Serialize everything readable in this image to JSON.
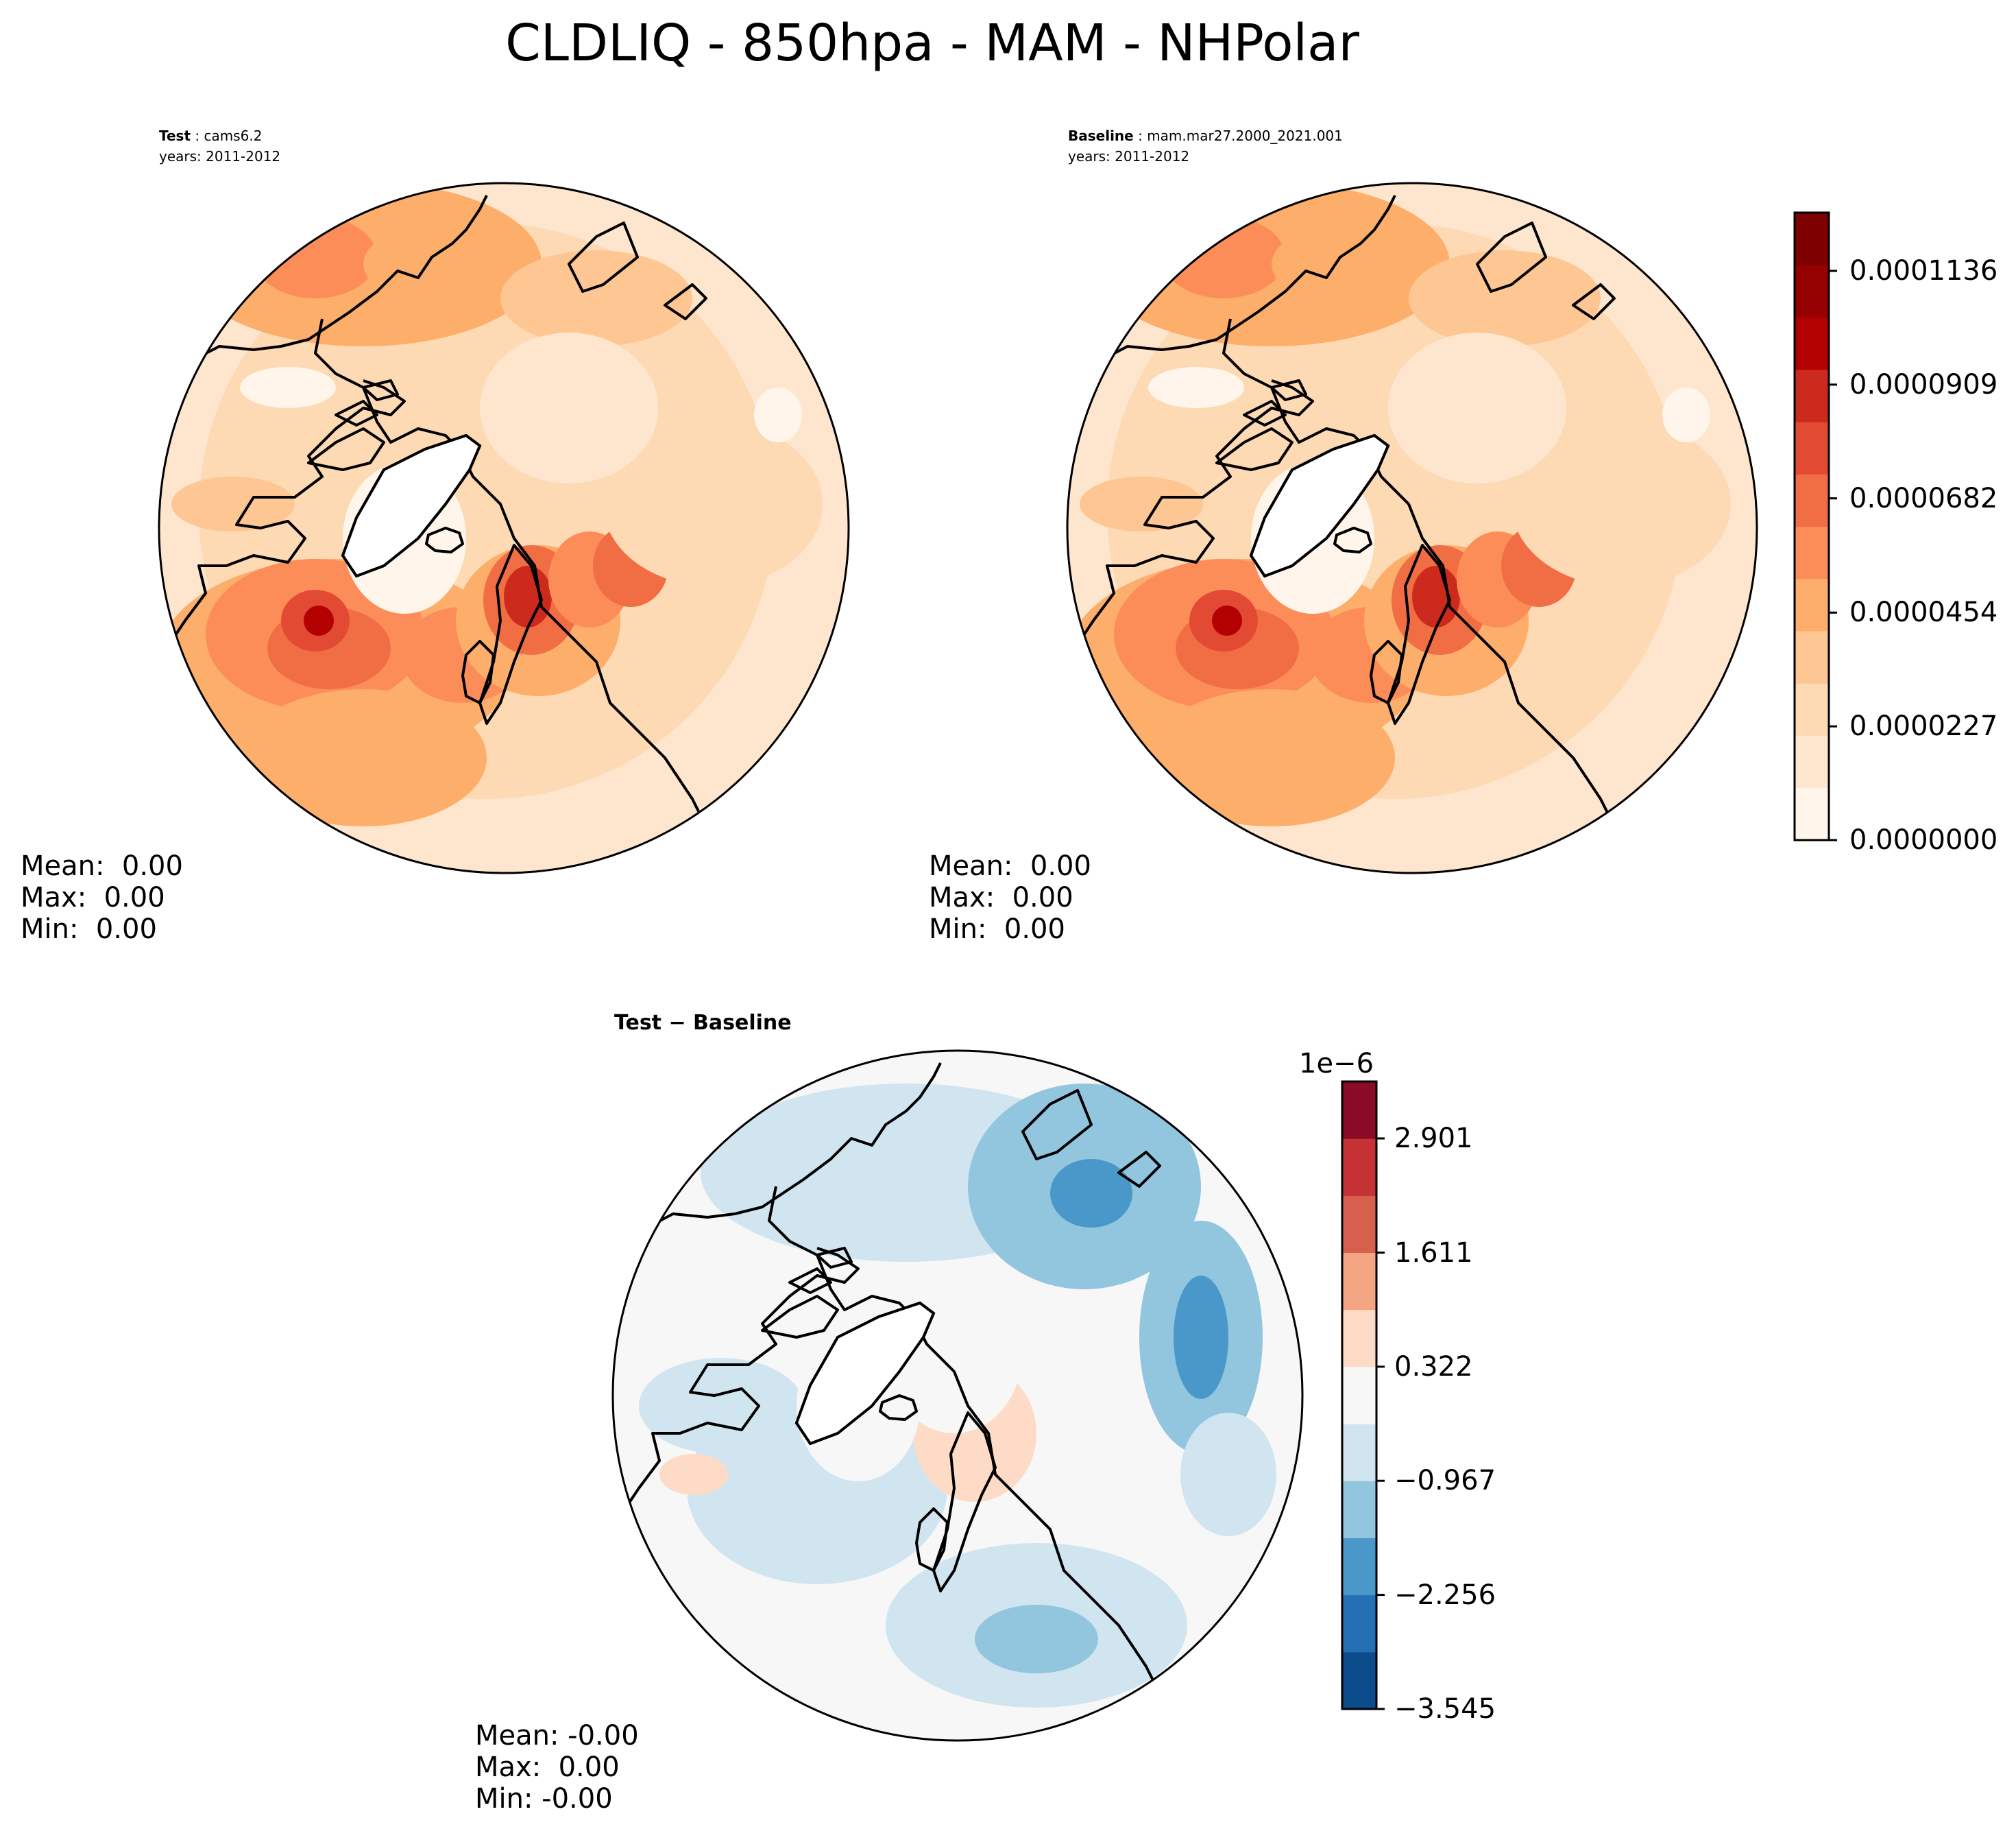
{
  "suptitle": "CLDLIQ - 850hpa - MAM - NHPolar",
  "panels": {
    "test": {
      "label": "Test",
      "name": "cams6.2",
      "years": "years: 2011-2012",
      "stats": {
        "mean": "Mean:  0.00",
        "max": "Max:  0.00",
        "min": "Min:  0.00"
      }
    },
    "baseline": {
      "label": "Baseline",
      "name": "mam.mar27.2000_2021.001",
      "years": "years: 2011-2012",
      "stats": {
        "mean": "Mean:  0.00",
        "max": "Max:  0.00",
        "min": "Min:  0.00"
      }
    },
    "diff": {
      "title": "Test − Baseline",
      "stats": {
        "mean": "Mean: -0.00",
        "max": "Max:  0.00",
        "min": "Min: -0.00"
      }
    }
  },
  "colorbars": {
    "main": {
      "ticks": [
        "0.0000000",
        "0.0000227",
        "0.0000454",
        "0.0000682",
        "0.0000909",
        "0.0001136"
      ],
      "colors": [
        "#fff5eb",
        "#fee6ce",
        "#fdd9b4",
        "#fdc692",
        "#fdae6b",
        "#fc8d59",
        "#f16d43",
        "#e34a33",
        "#cb2a1c",
        "#b30000",
        "#950000",
        "#7f0000"
      ]
    },
    "diff": {
      "offset": "1e−6",
      "ticks": [
        "−3.545",
        "−2.256",
        "−0.967",
        "0.322",
        "1.611",
        "2.901"
      ],
      "colors": [
        "#0b4c8c",
        "#2470b4",
        "#4a98c9",
        "#92c5de",
        "#d1e5f0",
        "#f7f7f7",
        "#fddbc7",
        "#f4a582",
        "#d6604d",
        "#c43236",
        "#8b0a26"
      ]
    }
  },
  "chart_data": [
    {
      "type": "heatmap",
      "title": "Test : cams6.2",
      "subtitle": "years: 2011-2012",
      "projection": "north polar stereographic",
      "field_description": "high values near the Labrador Sea, Iceland and Norwegian Sea; lower values over the central Arctic",
      "colorbar_ticks": [
        0.0,
        2.27e-05,
        4.54e-05,
        6.82e-05,
        9.09e-05,
        0.0001136
      ],
      "stats": {
        "mean": 0.0,
        "max": 0.0,
        "min": 0.0
      }
    },
    {
      "type": "heatmap",
      "title": "Baseline : mam.mar27.2000_2021.001",
      "subtitle": "years: 2011-2012",
      "projection": "north polar stereographic",
      "colorbar_ticks": [
        0.0,
        2.27e-05,
        4.54e-05,
        6.82e-05,
        9.09e-05,
        0.0001136
      ],
      "stats": {
        "mean": 0.0,
        "max": 0.0,
        "min": 0.0
      }
    },
    {
      "type": "heatmap",
      "title": "Test − Baseline",
      "projection": "north polar stereographic",
      "colorbar_offset": "1e−6",
      "colorbar_ticks": [
        -3.545,
        -2.256,
        -0.967,
        0.322,
        1.611,
        2.901
      ],
      "stats": {
        "mean": -0.0,
        "max": 0.0,
        "min": -0.0
      }
    }
  ]
}
